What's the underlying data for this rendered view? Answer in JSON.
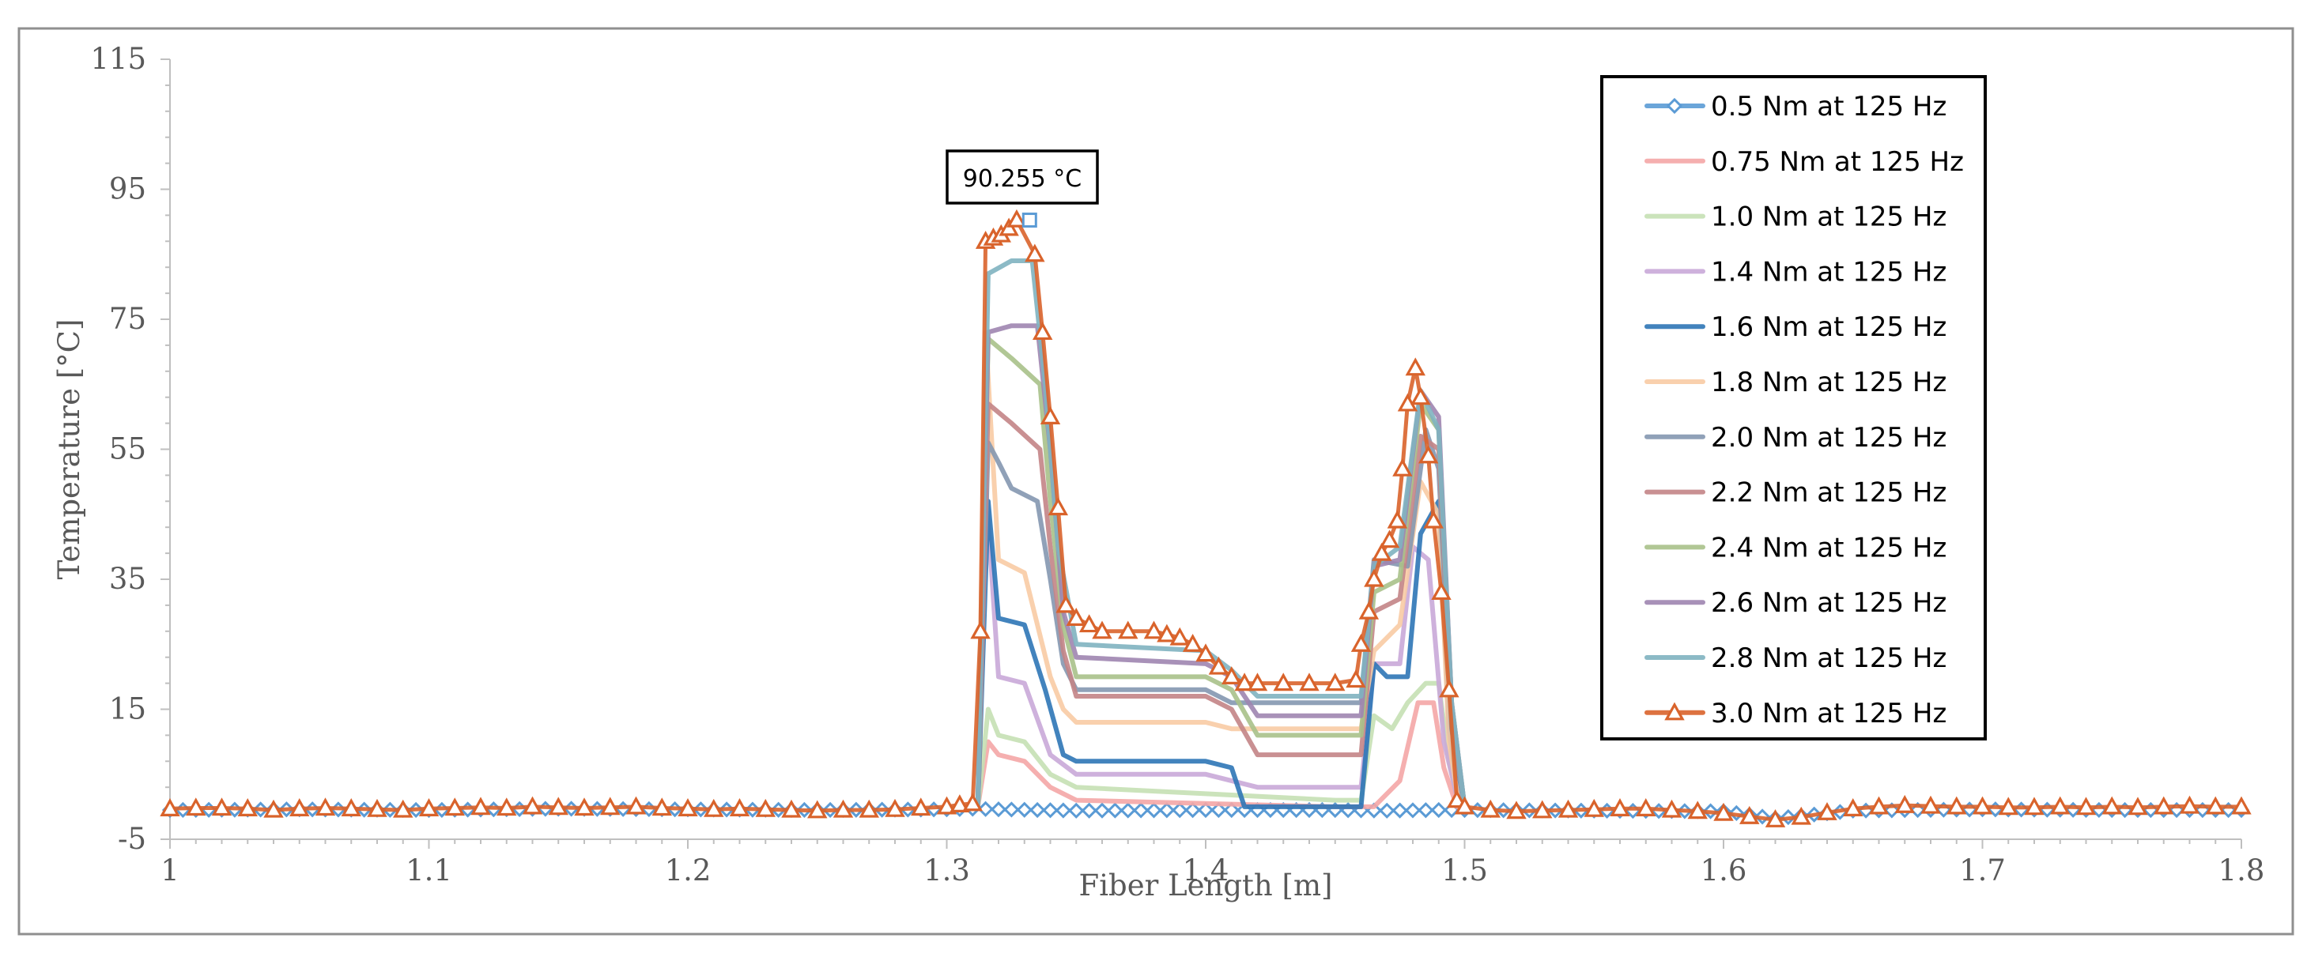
{
  "chart_data": {
    "type": "line",
    "title": "",
    "xlabel": "Fiber Length [m]",
    "ylabel": "Temperature [°C]",
    "xlim": [
      1.0,
      1.8
    ],
    "ylim": [
      -5,
      115
    ],
    "x_ticks": [
      1.0,
      1.1,
      1.2,
      1.3,
      1.4,
      1.5,
      1.6,
      1.7,
      1.8
    ],
    "x_tick_labels": [
      "1",
      "1.1",
      "1.2",
      "1.3",
      "1.4",
      "1.5",
      "1.6",
      "1.7",
      "1.8"
    ],
    "y_ticks": [
      -5,
      15,
      35,
      55,
      75,
      95,
      115
    ],
    "y_tick_labels": [
      "-5",
      "15",
      "35",
      "55",
      "75",
      "95",
      "115"
    ],
    "legend_position": "top-right",
    "annotation": {
      "label": "90.255 °C",
      "x": 1.332,
      "y": 90.255
    },
    "series": [
      {
        "name": "0.5 Nm at 125 Hz",
        "color": "#5b9bd5",
        "marker": "diamond",
        "points": [
          [
            1.0,
            -0.5
          ],
          [
            1.05,
            -0.4
          ],
          [
            1.1,
            -0.5
          ],
          [
            1.15,
            -0.3
          ],
          [
            1.2,
            -0.4
          ],
          [
            1.25,
            -0.5
          ],
          [
            1.3,
            -0.4
          ],
          [
            1.31,
            -0.3
          ],
          [
            1.32,
            -0.4
          ],
          [
            1.35,
            -0.6
          ],
          [
            1.4,
            -0.5
          ],
          [
            1.45,
            -0.5
          ],
          [
            1.47,
            -0.6
          ],
          [
            1.49,
            -0.5
          ],
          [
            1.5,
            -0.5
          ],
          [
            1.55,
            -0.6
          ],
          [
            1.6,
            -0.7
          ],
          [
            1.62,
            -1.8
          ],
          [
            1.65,
            -0.6
          ],
          [
            1.7,
            -0.4
          ],
          [
            1.75,
            -0.5
          ],
          [
            1.8,
            -0.5
          ]
        ]
      },
      {
        "name": "0.75 Nm at 125 Hz",
        "color": "#f4a6a6",
        "points": [
          [
            1.312,
            0
          ],
          [
            1.316,
            10
          ],
          [
            1.32,
            8
          ],
          [
            1.33,
            7
          ],
          [
            1.34,
            3
          ],
          [
            1.35,
            1
          ],
          [
            1.45,
            0
          ],
          [
            1.465,
            0
          ],
          [
            1.475,
            4
          ],
          [
            1.482,
            16
          ],
          [
            1.488,
            16
          ],
          [
            1.492,
            6
          ],
          [
            1.497,
            0
          ]
        ]
      },
      {
        "name": "1.0 Nm at 125 Hz",
        "color": "#c5e0b4",
        "points": [
          [
            1.312,
            0
          ],
          [
            1.316,
            15
          ],
          [
            1.32,
            11
          ],
          [
            1.33,
            10
          ],
          [
            1.34,
            5
          ],
          [
            1.35,
            3
          ],
          [
            1.4,
            2
          ],
          [
            1.45,
            1
          ],
          [
            1.46,
            1
          ],
          [
            1.465,
            14
          ],
          [
            1.472,
            12
          ],
          [
            1.478,
            16
          ],
          [
            1.485,
            19
          ],
          [
            1.49,
            19
          ],
          [
            1.494,
            7
          ],
          [
            1.498,
            0
          ]
        ]
      },
      {
        "name": "1.4 Nm at 125 Hz",
        "color": "#c9a8d8",
        "points": [
          [
            1.312,
            0
          ],
          [
            1.315,
            50
          ],
          [
            1.32,
            20
          ],
          [
            1.33,
            19
          ],
          [
            1.34,
            8
          ],
          [
            1.35,
            5
          ],
          [
            1.4,
            5
          ],
          [
            1.42,
            3
          ],
          [
            1.46,
            3
          ],
          [
            1.465,
            22
          ],
          [
            1.475,
            22
          ],
          [
            1.48,
            40
          ],
          [
            1.486,
            38
          ],
          [
            1.492,
            10
          ],
          [
            1.498,
            0
          ]
        ]
      },
      {
        "name": "1.6 Nm at 125 Hz",
        "color": "#2e75b6",
        "points": [
          [
            1.312,
            0
          ],
          [
            1.316,
            47
          ],
          [
            1.32,
            29
          ],
          [
            1.33,
            28
          ],
          [
            1.338,
            18
          ],
          [
            1.345,
            8
          ],
          [
            1.35,
            7
          ],
          [
            1.4,
            7
          ],
          [
            1.41,
            6
          ],
          [
            1.415,
            0
          ],
          [
            1.46,
            0
          ],
          [
            1.465,
            22
          ],
          [
            1.47,
            20
          ],
          [
            1.478,
            20
          ],
          [
            1.483,
            42
          ],
          [
            1.49,
            47
          ],
          [
            1.494,
            12
          ],
          [
            1.498,
            0
          ]
        ]
      },
      {
        "name": "1.8 Nm at 125 Hz",
        "color": "#f8cba4",
        "points": [
          [
            1.312,
            0
          ],
          [
            1.315,
            73
          ],
          [
            1.32,
            38
          ],
          [
            1.33,
            36
          ],
          [
            1.34,
            20
          ],
          [
            1.345,
            15
          ],
          [
            1.35,
            13
          ],
          [
            1.4,
            13
          ],
          [
            1.41,
            12
          ],
          [
            1.46,
            12
          ],
          [
            1.465,
            24
          ],
          [
            1.475,
            28
          ],
          [
            1.483,
            50
          ],
          [
            1.49,
            45
          ],
          [
            1.494,
            10
          ],
          [
            1.498,
            0
          ]
        ]
      },
      {
        "name": "2.0 Nm at 125 Hz",
        "color": "#8497b0",
        "points": [
          [
            1.312,
            0
          ],
          [
            1.316,
            56
          ],
          [
            1.32,
            53
          ],
          [
            1.325,
            49
          ],
          [
            1.335,
            47
          ],
          [
            1.34,
            35
          ],
          [
            1.345,
            22
          ],
          [
            1.35,
            18
          ],
          [
            1.4,
            18
          ],
          [
            1.41,
            16
          ],
          [
            1.46,
            16
          ],
          [
            1.465,
            38
          ],
          [
            1.478,
            37
          ],
          [
            1.485,
            58
          ],
          [
            1.49,
            52
          ],
          [
            1.495,
            12
          ],
          [
            1.5,
            0
          ]
        ]
      },
      {
        "name": "2.2 Nm at 125 Hz",
        "color": "#c38486",
        "points": [
          [
            1.312,
            0
          ],
          [
            1.316,
            62
          ],
          [
            1.325,
            59
          ],
          [
            1.336,
            55
          ],
          [
            1.34,
            40
          ],
          [
            1.345,
            24
          ],
          [
            1.35,
            17
          ],
          [
            1.4,
            17
          ],
          [
            1.41,
            15
          ],
          [
            1.42,
            8
          ],
          [
            1.46,
            8
          ],
          [
            1.465,
            30
          ],
          [
            1.475,
            32
          ],
          [
            1.483,
            57
          ],
          [
            1.49,
            55
          ],
          [
            1.495,
            15
          ],
          [
            1.5,
            0
          ]
        ]
      },
      {
        "name": "2.4 Nm at 125 Hz",
        "color": "#a9c189",
        "points": [
          [
            1.312,
            0
          ],
          [
            1.316,
            72
          ],
          [
            1.325,
            69
          ],
          [
            1.336,
            65
          ],
          [
            1.34,
            47
          ],
          [
            1.345,
            28
          ],
          [
            1.35,
            20
          ],
          [
            1.4,
            20
          ],
          [
            1.41,
            18
          ],
          [
            1.42,
            11
          ],
          [
            1.46,
            11
          ],
          [
            1.465,
            33
          ],
          [
            1.475,
            35
          ],
          [
            1.483,
            62
          ],
          [
            1.49,
            58
          ],
          [
            1.495,
            16
          ],
          [
            1.5,
            0
          ]
        ]
      },
      {
        "name": "2.6 Nm at 125 Hz",
        "color": "#9e85b0",
        "points": [
          [
            1.312,
            0
          ],
          [
            1.316,
            73
          ],
          [
            1.325,
            74
          ],
          [
            1.335,
            74
          ],
          [
            1.34,
            55
          ],
          [
            1.345,
            30
          ],
          [
            1.35,
            23
          ],
          [
            1.4,
            22
          ],
          [
            1.41,
            20
          ],
          [
            1.42,
            14
          ],
          [
            1.46,
            14
          ],
          [
            1.465,
            37
          ],
          [
            1.475,
            38
          ],
          [
            1.483,
            64
          ],
          [
            1.49,
            60
          ],
          [
            1.495,
            16
          ],
          [
            1.5,
            0
          ]
        ]
      },
      {
        "name": "2.8 Nm at 125 Hz",
        "color": "#7fb3c0",
        "points": [
          [
            1.312,
            0
          ],
          [
            1.316,
            82
          ],
          [
            1.325,
            84
          ],
          [
            1.333,
            84
          ],
          [
            1.338,
            65
          ],
          [
            1.343,
            40
          ],
          [
            1.35,
            25
          ],
          [
            1.4,
            24
          ],
          [
            1.41,
            21
          ],
          [
            1.42,
            17
          ],
          [
            1.46,
            17
          ],
          [
            1.465,
            37
          ],
          [
            1.475,
            40
          ],
          [
            1.483,
            64
          ],
          [
            1.49,
            58
          ],
          [
            1.495,
            16
          ],
          [
            1.5,
            0
          ]
        ]
      },
      {
        "name": "3.0 Nm at 125 Hz",
        "color": "#d9632b",
        "marker": "triangle",
        "points": [
          [
            1.0,
            -0.3
          ],
          [
            1.01,
            -0.2
          ],
          [
            1.02,
            -0.2
          ],
          [
            1.03,
            -0.3
          ],
          [
            1.04,
            -0.5
          ],
          [
            1.05,
            -0.3
          ],
          [
            1.06,
            -0.2
          ],
          [
            1.07,
            -0.3
          ],
          [
            1.08,
            -0.4
          ],
          [
            1.09,
            -0.5
          ],
          [
            1.1,
            -0.3
          ],
          [
            1.11,
            -0.2
          ],
          [
            1.12,
            -0.1
          ],
          [
            1.13,
            -0.2
          ],
          [
            1.14,
            0
          ],
          [
            1.15,
            -0.1
          ],
          [
            1.16,
            -0.2
          ],
          [
            1.17,
            -0.1
          ],
          [
            1.18,
            0
          ],
          [
            1.19,
            -0.2
          ],
          [
            1.2,
            -0.3
          ],
          [
            1.21,
            -0.4
          ],
          [
            1.22,
            -0.3
          ],
          [
            1.23,
            -0.4
          ],
          [
            1.24,
            -0.5
          ],
          [
            1.25,
            -0.6
          ],
          [
            1.26,
            -0.5
          ],
          [
            1.27,
            -0.5
          ],
          [
            1.28,
            -0.4
          ],
          [
            1.29,
            -0.2
          ],
          [
            1.3,
            0
          ],
          [
            1.305,
            0.3
          ],
          [
            1.31,
            0.5
          ],
          [
            1.313,
            27
          ],
          [
            1.315,
            87
          ],
          [
            1.318,
            87.5
          ],
          [
            1.321,
            88
          ],
          [
            1.324,
            89
          ],
          [
            1.327,
            90.3
          ],
          [
            1.334,
            85
          ],
          [
            1.337,
            73
          ],
          [
            1.34,
            60
          ],
          [
            1.343,
            46
          ],
          [
            1.346,
            31
          ],
          [
            1.35,
            29
          ],
          [
            1.355,
            28
          ],
          [
            1.36,
            27
          ],
          [
            1.37,
            27
          ],
          [
            1.38,
            27
          ],
          [
            1.385,
            26.5
          ],
          [
            1.39,
            26
          ],
          [
            1.395,
            25
          ],
          [
            1.4,
            23.5
          ],
          [
            1.405,
            21.5
          ],
          [
            1.41,
            20
          ],
          [
            1.415,
            19
          ],
          [
            1.42,
            19
          ],
          [
            1.43,
            19
          ],
          [
            1.44,
            19
          ],
          [
            1.45,
            19
          ],
          [
            1.458,
            19.5
          ],
          [
            1.46,
            25
          ],
          [
            1.463,
            30
          ],
          [
            1.465,
            35
          ],
          [
            1.468,
            39
          ],
          [
            1.471,
            41
          ],
          [
            1.474,
            44
          ],
          [
            1.476,
            52
          ],
          [
            1.478,
            62
          ],
          [
            1.481,
            67.5
          ],
          [
            1.483,
            63
          ],
          [
            1.486,
            54
          ],
          [
            1.488,
            44
          ],
          [
            1.491,
            33
          ],
          [
            1.494,
            18
          ],
          [
            1.497,
            1
          ],
          [
            1.5,
            0
          ],
          [
            1.51,
            -0.5
          ],
          [
            1.52,
            -0.7
          ],
          [
            1.53,
            -0.6
          ],
          [
            1.54,
            -0.5
          ],
          [
            1.55,
            -0.4
          ],
          [
            1.56,
            -0.3
          ],
          [
            1.57,
            -0.3
          ],
          [
            1.58,
            -0.5
          ],
          [
            1.59,
            -0.7
          ],
          [
            1.6,
            -1.0
          ],
          [
            1.61,
            -1.5
          ],
          [
            1.62,
            -2.0
          ],
          [
            1.63,
            -1.6
          ],
          [
            1.64,
            -0.9
          ],
          [
            1.65,
            -0.3
          ],
          [
            1.66,
            0
          ],
          [
            1.67,
            0.2
          ],
          [
            1.68,
            0.1
          ],
          [
            1.69,
            0
          ],
          [
            1.7,
            0
          ],
          [
            1.71,
            -0.1
          ],
          [
            1.72,
            -0.1
          ],
          [
            1.73,
            0
          ],
          [
            1.74,
            -0.1
          ],
          [
            1.75,
            0
          ],
          [
            1.76,
            -0.1
          ],
          [
            1.77,
            0
          ],
          [
            1.78,
            0.1
          ],
          [
            1.79,
            0
          ],
          [
            1.8,
            0
          ]
        ]
      }
    ]
  }
}
